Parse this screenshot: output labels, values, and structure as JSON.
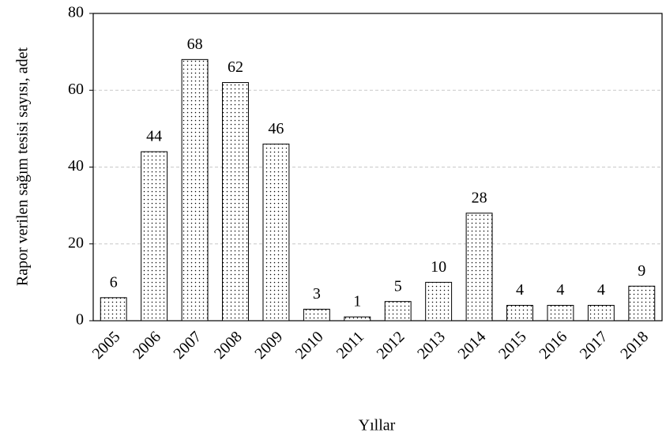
{
  "chart_data": {
    "type": "bar",
    "categories": [
      "2005",
      "2006",
      "2007",
      "2008",
      "2009",
      "2010",
      "2011",
      "2012",
      "2013",
      "2014",
      "2015",
      "2016",
      "2017",
      "2018"
    ],
    "values": [
      6,
      44,
      68,
      62,
      46,
      3,
      1,
      5,
      10,
      28,
      4,
      4,
      4,
      9
    ],
    "color": "#000000",
    "xlabel": "Yıllar",
    "ylabel": "Rapor verilen sağım tesisi sayısı, adet",
    "ylim": [
      0,
      80
    ],
    "yticks": [
      0,
      20,
      40,
      60,
      80
    ],
    "grid": true
  }
}
